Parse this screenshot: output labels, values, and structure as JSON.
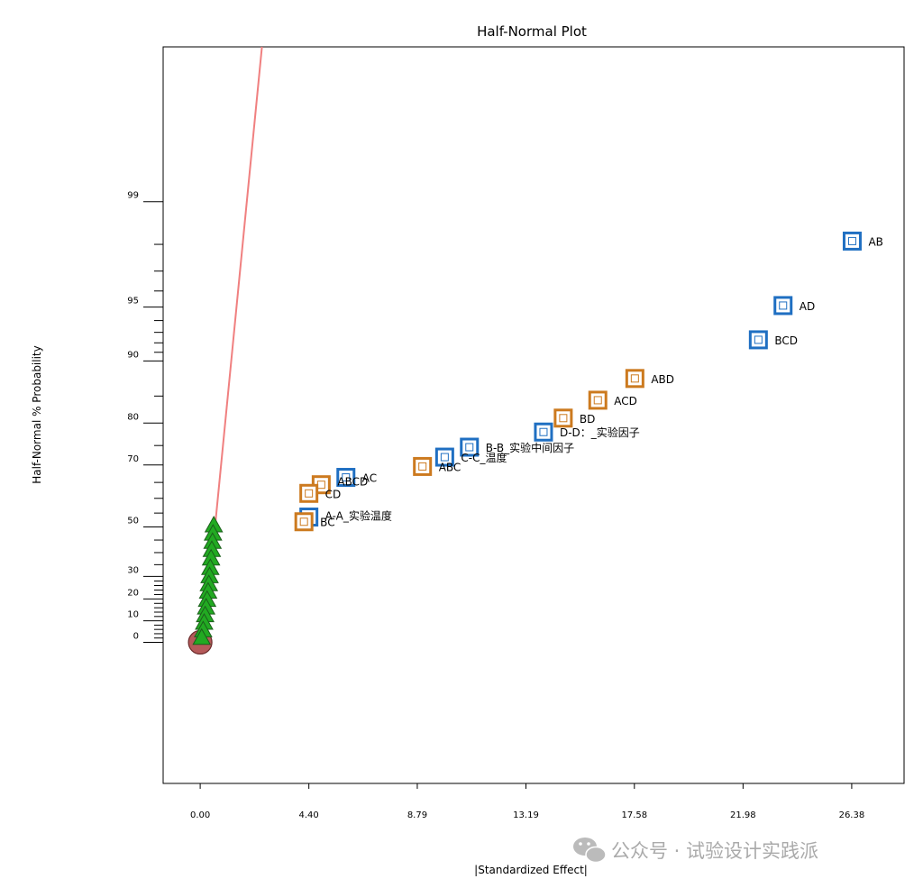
{
  "chart_data": {
    "type": "scatter",
    "title": "Half-Normal Plot",
    "xlabel": "|Standardized Effect|",
    "ylabel": "Half-Normal % Probability",
    "x_ticks": [
      "0.00",
      "4.40",
      "8.79",
      "13.19",
      "17.58",
      "21.98",
      "26.38"
    ],
    "x_tick_values": [
      0,
      4.4,
      8.79,
      13.19,
      17.58,
      21.98,
      26.38
    ],
    "y_tick_labels": [
      "0",
      "10",
      "20",
      "30",
      "50",
      "70",
      "80",
      "90",
      "95",
      "99"
    ],
    "y_tick_values": [
      0,
      10,
      20,
      30,
      50,
      70,
      80,
      90,
      95,
      99
    ],
    "y_minor_ticks": [
      2,
      4,
      6,
      8,
      12,
      14,
      16,
      18,
      22,
      24,
      26,
      28,
      35,
      40,
      45,
      55,
      60,
      65,
      75,
      85,
      91,
      92,
      93,
      94,
      96,
      97,
      98
    ],
    "xlim": [
      -1.5,
      28.5
    ],
    "ylim": [
      -27.5,
      99.95
    ],
    "reference_line": {
      "color": "#f08080",
      "points": [
        [
          0.6,
          50
        ],
        [
          2.5,
          99.95
        ]
      ]
    },
    "series": [
      {
        "marker": "square",
        "color": "#1f6fc2",
        "points": [
          {
            "label": "AB",
            "x": 26.4,
            "y": 98.1
          },
          {
            "label": "AD",
            "x": 23.6,
            "y": 95.1
          },
          {
            "label": "BCD",
            "x": 22.6,
            "y": 92.3
          },
          {
            "label": "D-D：_实验因子",
            "x": 13.9,
            "y": 78.1
          },
          {
            "label": "B-B_实验中间因子",
            "x": 10.9,
            "y": 74.6
          },
          {
            "label": "C-C_温度",
            "x": 9.9,
            "y": 72.1
          },
          {
            "label": "AC",
            "x": 5.9,
            "y": 66.5
          },
          {
            "label": "A-A_实验温度",
            "x": 4.4,
            "y": 53.6
          }
        ]
      },
      {
        "marker": "square",
        "color": "#cc7a1f",
        "points": [
          {
            "label": "ABD",
            "x": 17.6,
            "y": 87.7
          },
          {
            "label": "ACD",
            "x": 16.1,
            "y": 84.3
          },
          {
            "label": "BD",
            "x": 14.7,
            "y": 81.0
          },
          {
            "label": "ABC",
            "x": 9.0,
            "y": 69.6
          },
          {
            "label": "ABCD",
            "x": 4.9,
            "y": 64.3
          },
          {
            "label": "CD",
            "x": 4.4,
            "y": 61.6
          },
          {
            "label": "BC",
            "x": 4.2,
            "y": 51.9
          }
        ]
      },
      {
        "marker": "triangle",
        "color": "#22aa22",
        "points": [
          {
            "x": 0.55,
            "y": 50.5
          },
          {
            "x": 0.52,
            "y": 47.4
          },
          {
            "x": 0.5,
            "y": 44.2
          },
          {
            "x": 0.47,
            "y": 41.0
          },
          {
            "x": 0.44,
            "y": 37.5
          },
          {
            "x": 0.41,
            "y": 33.5
          },
          {
            "x": 0.38,
            "y": 30.0
          },
          {
            "x": 0.35,
            "y": 26.5
          },
          {
            "x": 0.32,
            "y": 23.2
          },
          {
            "x": 0.28,
            "y": 19.5
          },
          {
            "x": 0.24,
            "y": 16.0
          },
          {
            "x": 0.2,
            "y": 12.5
          },
          {
            "x": 0.16,
            "y": 9.0
          },
          {
            "x": 0.12,
            "y": 5.5
          },
          {
            "x": 0.06,
            "y": 2.0
          }
        ]
      },
      {
        "marker": "circle",
        "color": "#b55a5a",
        "points": [
          {
            "x": 0.0,
            "y": 0.0
          }
        ]
      }
    ],
    "grid": false,
    "legend": "none"
  },
  "watermark": {
    "text": "公众号 · 试验设计实践派",
    "icon": "wechat-icon"
  }
}
